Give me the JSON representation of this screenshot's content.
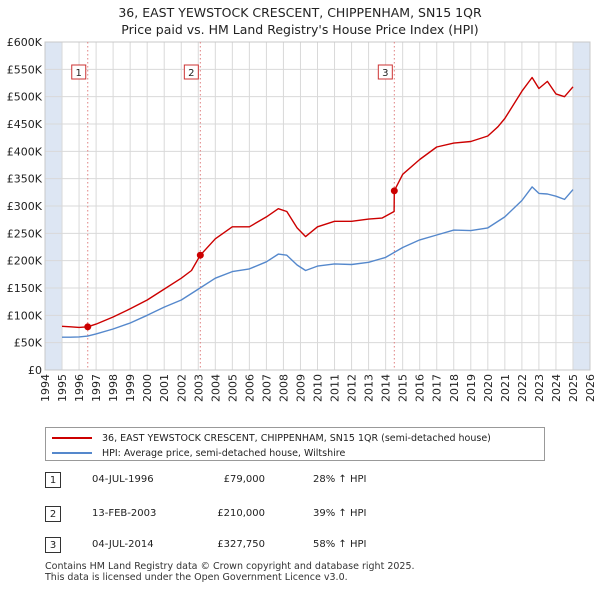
{
  "title": {
    "line1": "36, EAST YEWSTOCK CRESCENT, CHIPPENHAM, SN15 1QR",
    "line2": "Price paid vs. HM Land Registry's House Price Index (HPI)"
  },
  "colors": {
    "property": "#cc0000",
    "hpi": "#5588cc",
    "shade": "#dde6f3",
    "grid": "#d9d9d9",
    "marker_line": "#e08080"
  },
  "chart_data": {
    "type": "line",
    "title": "Price paid vs. HM Land Registry's House Price Index (HPI)",
    "xlim": [
      1994,
      2026
    ],
    "ylim": [
      0,
      600000
    ],
    "x_ticks": [
      1994,
      1995,
      1996,
      1997,
      1998,
      1999,
      2000,
      2001,
      2002,
      2003,
      2004,
      2005,
      2006,
      2007,
      2008,
      2009,
      2010,
      2011,
      2012,
      2013,
      2014,
      2015,
      2016,
      2017,
      2018,
      2019,
      2020,
      2021,
      2022,
      2023,
      2024,
      2025,
      2026
    ],
    "y_ticks": [
      {
        "value": 0,
        "label": "£0"
      },
      {
        "value": 50000,
        "label": "£50K"
      },
      {
        "value": 100000,
        "label": "£100K"
      },
      {
        "value": 150000,
        "label": "£150K"
      },
      {
        "value": 200000,
        "label": "£200K"
      },
      {
        "value": 250000,
        "label": "£250K"
      },
      {
        "value": 300000,
        "label": "£300K"
      },
      {
        "value": 350000,
        "label": "£350K"
      },
      {
        "value": 400000,
        "label": "£400K"
      },
      {
        "value": 450000,
        "label": "£450K"
      },
      {
        "value": 500000,
        "label": "£500K"
      },
      {
        "value": 550000,
        "label": "£550K"
      },
      {
        "value": 600000,
        "label": "£600K"
      }
    ],
    "shaded_ranges": [
      [
        1994,
        1995
      ],
      [
        2025,
        2026
      ]
    ],
    "series": [
      {
        "name": "36, EAST YEWSTOCK CRESCENT, CHIPPENHAM, SN15 1QR (semi-detached house)",
        "color": "#cc0000",
        "x": [
          1995.0,
          1995.5,
          1996.0,
          1996.51,
          1997.0,
          1998.0,
          1999.0,
          2000.0,
          2001.0,
          2002.0,
          2002.6,
          2003.12,
          2004.0,
          2005.0,
          2006.0,
          2007.0,
          2007.7,
          2008.2,
          2008.8,
          2009.3,
          2010.0,
          2011.0,
          2012.0,
          2013.0,
          2013.8,
          2014.5,
          2014.51,
          2015.0,
          2016.0,
          2017.0,
          2018.0,
          2019.0,
          2020.0,
          2020.6,
          2021.0,
          2022.0,
          2022.6,
          2023.0,
          2023.5,
          2024.0,
          2024.5,
          2025.0
        ],
        "y": [
          80000,
          79000,
          78000,
          79000,
          84000,
          97000,
          112000,
          128000,
          148000,
          168000,
          182000,
          210000,
          240000,
          262000,
          262000,
          280000,
          295000,
          290000,
          260000,
          244000,
          262000,
          272000,
          272000,
          276000,
          278000,
          290000,
          327750,
          358000,
          385000,
          408000,
          415000,
          418000,
          428000,
          445000,
          460000,
          510000,
          535000,
          515000,
          528000,
          505000,
          500000,
          518000
        ]
      },
      {
        "name": "HPI: Average price, semi-detached house, Wiltshire",
        "color": "#5588cc",
        "x": [
          1995.0,
          1995.5,
          1996.0,
          1996.5,
          1997.0,
          1998.0,
          1999.0,
          2000.0,
          2001.0,
          2002.0,
          2003.0,
          2004.0,
          2005.0,
          2006.0,
          2007.0,
          2007.7,
          2008.2,
          2008.8,
          2009.3,
          2010.0,
          2011.0,
          2012.0,
          2013.0,
          2014.0,
          2015.0,
          2016.0,
          2017.0,
          2018.0,
          2019.0,
          2020.0,
          2021.0,
          2022.0,
          2022.6,
          2023.0,
          2023.5,
          2024.0,
          2024.5,
          2025.0
        ],
        "y": [
          60000,
          60000,
          60500,
          62000,
          66000,
          75000,
          86000,
          100000,
          115000,
          128000,
          148000,
          168000,
          180000,
          185000,
          198000,
          212000,
          210000,
          192000,
          182000,
          190000,
          194000,
          193000,
          197000,
          206000,
          224000,
          238000,
          247000,
          256000,
          255000,
          260000,
          280000,
          310000,
          335000,
          323000,
          322000,
          318000,
          312000,
          330000
        ]
      }
    ],
    "sales": [
      {
        "num": "1",
        "x": 1996.51,
        "y": 79000
      },
      {
        "num": "2",
        "x": 2003.12,
        "y": 210000
      },
      {
        "num": "3",
        "x": 2014.51,
        "y": 327750
      }
    ]
  },
  "legend": {
    "property_label": "36, EAST YEWSTOCK CRESCENT, CHIPPENHAM, SN15 1QR (semi-detached house)",
    "hpi_label": "HPI: Average price, semi-detached house, Wiltshire"
  },
  "sales": [
    {
      "num": "1",
      "date": "04-JUL-1996",
      "price": "£79,000",
      "hpi": "28% ↑ HPI"
    },
    {
      "num": "2",
      "date": "13-FEB-2003",
      "price": "£210,000",
      "hpi": "39% ↑ HPI"
    },
    {
      "num": "3",
      "date": "04-JUL-2014",
      "price": "£327,750",
      "hpi": "58% ↑ HPI"
    }
  ],
  "footer": {
    "line1": "Contains HM Land Registry data © Crown copyright and database right 2025.",
    "line2": "This data is licensed under the Open Government Licence v3.0."
  }
}
